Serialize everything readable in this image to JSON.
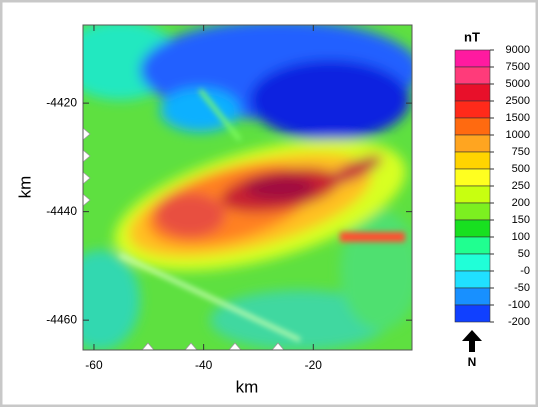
{
  "map": {
    "x_label": "km",
    "y_label": "km",
    "xlim": [
      -62,
      -2
    ],
    "ylim": [
      -4465.5,
      -4405.6
    ],
    "xticks": [
      -60,
      -40,
      -20
    ],
    "yticks": [
      -4420,
      -4440,
      -4460
    ],
    "colorbar": {
      "title": "nT",
      "labels": [
        "9000",
        "7500",
        "5000",
        "2500",
        "1500",
        "1000",
        "750",
        "500",
        "250",
        "200",
        "150",
        "100",
        "50",
        "-0",
        "-50",
        "-100",
        "-200"
      ],
      "colors": [
        "#ff1aa0",
        "#ff3b7a",
        "#e8102a",
        "#ff2a1a",
        "#ff6a10",
        "#ffa520",
        "#ffd400",
        "#ffff20",
        "#c8ff10",
        "#7cf020",
        "#18e020",
        "#20ff90",
        "#20ffd8",
        "#20e0ff",
        "#1890ff",
        "#1040ff"
      ]
    },
    "north_label": "N"
  }
}
